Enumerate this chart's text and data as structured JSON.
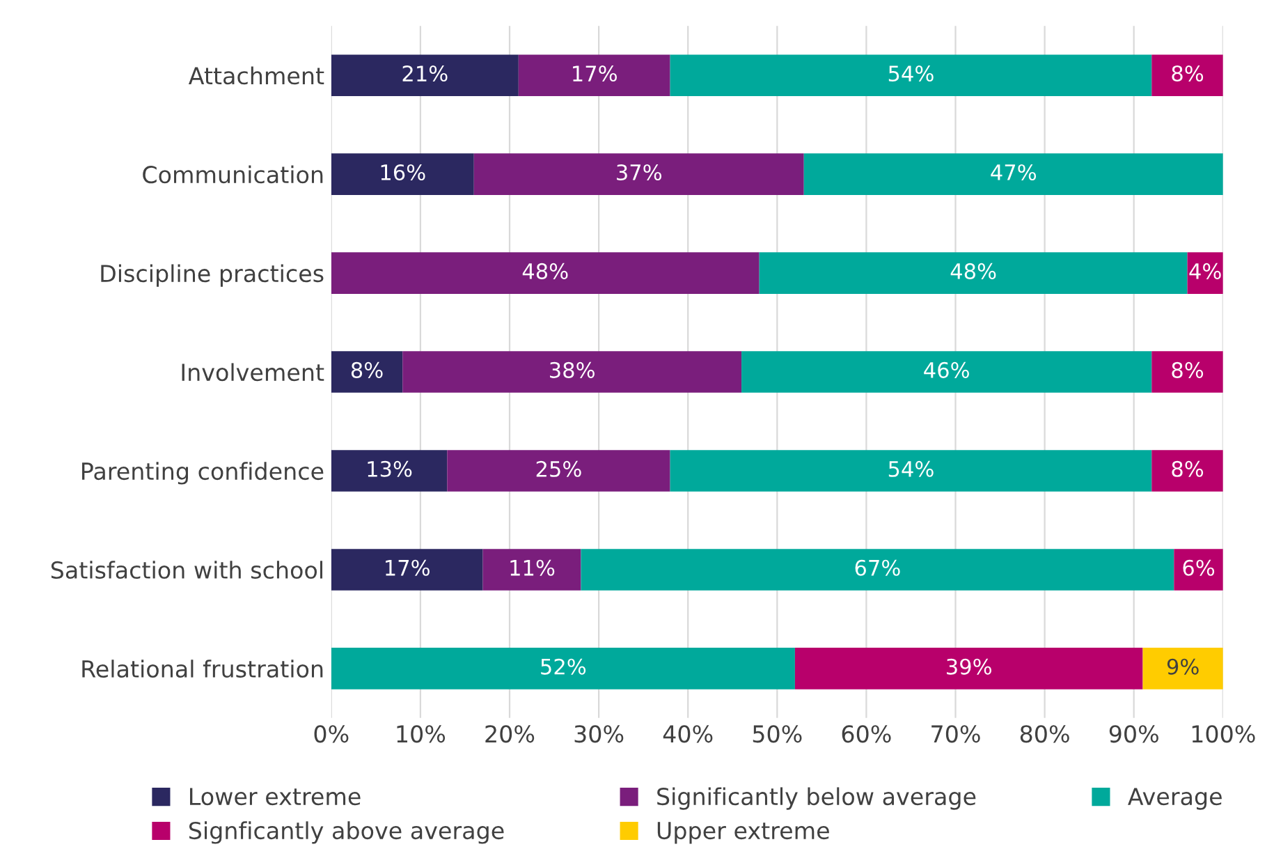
{
  "chart_data": {
    "type": "bar",
    "orientation": "horizontal",
    "stacked": true,
    "grid": "x",
    "legend": "bottom",
    "categories": [
      "Attachment",
      "Communication",
      "Discipline practices",
      "Involvement",
      "Parenting confidence",
      "Satisfaction with school",
      "Relational frustration"
    ],
    "xlim": [
      0,
      100
    ],
    "xticks": [
      {
        "value": 0,
        "label": "0%"
      },
      {
        "value": 10,
        "label": "10%"
      },
      {
        "value": 20,
        "label": "20%"
      },
      {
        "value": 30,
        "label": "30%"
      },
      {
        "value": 40,
        "label": "40%"
      },
      {
        "value": 50,
        "label": "50%"
      },
      {
        "value": 60,
        "label": "60%"
      },
      {
        "value": 70,
        "label": "70%"
      },
      {
        "value": 80,
        "label": "80%"
      },
      {
        "value": 90,
        "label": "90%"
      },
      {
        "value": 100,
        "label": "100%"
      }
    ],
    "series": [
      {
        "name": "Lower extreme",
        "color": "#2b2860",
        "values": [
          21,
          16,
          null,
          8,
          13,
          17,
          null
        ],
        "value_labels": [
          "21%",
          "16%",
          null,
          "8%",
          "13%",
          "17%",
          null
        ]
      },
      {
        "name": "Significantly below average",
        "color": "#7a1e7c",
        "values": [
          17,
          37,
          48,
          38,
          25,
          11,
          null
        ],
        "value_labels": [
          "17%",
          "37%",
          "48%",
          "38%",
          "25%",
          "11%",
          null
        ]
      },
      {
        "name": "Average",
        "color": "#00a99b",
        "values": [
          54,
          47,
          48,
          46,
          54,
          66.5,
          52
        ],
        "value_labels": [
          "54%",
          "47%",
          "48%",
          "46%",
          "54%",
          "67%",
          "52%"
        ]
      },
      {
        "name": "Signficantly above average",
        "color": "#b8006b",
        "values": [
          8,
          null,
          4,
          8,
          8,
          5.5,
          39
        ],
        "value_labels": [
          "8%",
          null,
          "4%",
          "8%",
          "8%",
          "6%",
          "39%"
        ]
      },
      {
        "name": "Upper extreme",
        "color": "#ffcc00",
        "values": [
          null,
          null,
          null,
          null,
          null,
          null,
          9
        ],
        "value_labels": [
          null,
          null,
          null,
          null,
          null,
          null,
          "9%"
        ]
      }
    ]
  }
}
